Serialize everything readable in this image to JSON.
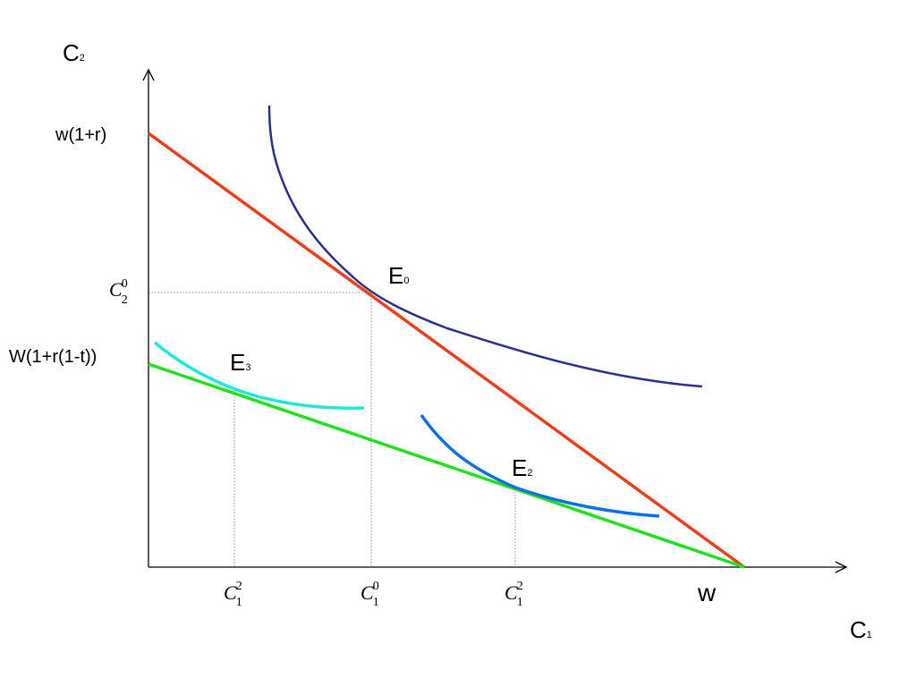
{
  "axes": {
    "y_label": "C",
    "y_label_sub": "2",
    "x_label": "C",
    "x_label_sub": "1"
  },
  "y_ticks": {
    "top": "w(1+r)",
    "mid": "W(1+r(1-t))",
    "c20": {
      "base": "C",
      "sub": "2",
      "sup": "0"
    }
  },
  "x_ticks": {
    "c12_left": {
      "base": "C",
      "sub": "1",
      "sup": "2"
    },
    "c10": {
      "base": "C",
      "sub": "1",
      "sup": "0"
    },
    "c12_right": {
      "base": "C",
      "sub": "1",
      "sup": "2"
    },
    "w": "w"
  },
  "points": {
    "e0": {
      "base": "E",
      "sub": "0"
    },
    "e3": {
      "base": "E",
      "sub": "3"
    },
    "e2": {
      "base": "E",
      "sub": "2"
    }
  },
  "colors": {
    "axis": "#000000",
    "budget_pre_tax": "#e8401c",
    "budget_post_tax": "#22e01f",
    "indiff_e0": "#2e2e8c",
    "indiff_e3": "#1ee8d6",
    "indiff_e2": "#0f6fe6",
    "guide": "#8a8a8a"
  }
}
